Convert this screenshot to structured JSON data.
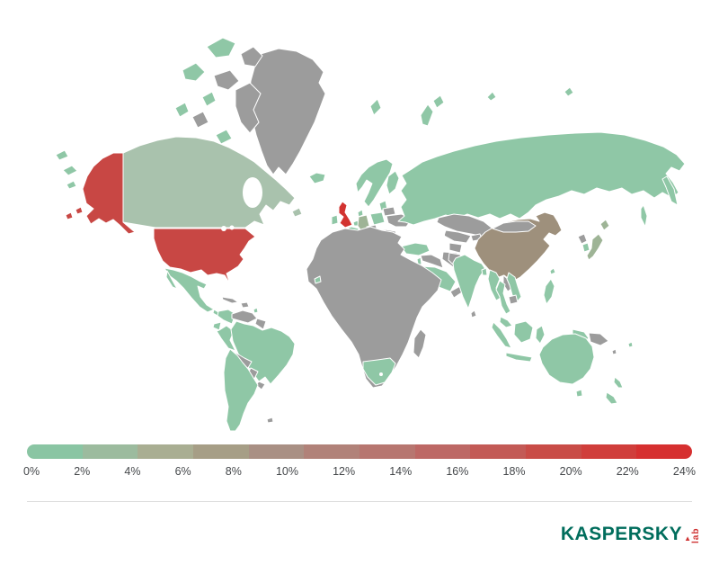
{
  "legend": {
    "tick_labels": [
      "0%",
      "2%",
      "4%",
      "6%",
      "8%",
      "10%",
      "12%",
      "14%",
      "16%",
      "18%",
      "20%",
      "22%",
      "24%"
    ],
    "segment_colors": [
      "#8ac5a3",
      "#9cbb9e",
      "#a9ae92",
      "#a69e86",
      "#a99084",
      "#b18279",
      "#b77670",
      "#bd6865",
      "#c35a56",
      "#c94c47",
      "#d03e3b",
      "#d63030"
    ]
  },
  "footer": {
    "logo_text": "KASPERSKY",
    "logo_sub": "lab"
  },
  "colors": {
    "green": "#8fc7a6",
    "canada_green": "#a9c2ad",
    "muted_green": "#9eb496",
    "gray": "#9c9c9c",
    "tan": "#9e907c",
    "red": "#c84744",
    "bright_red": "#d23330",
    "ocean": "#ffffff",
    "border": "#ffffff",
    "logo_green": "#006d5c",
    "logo_red": "#cf3333",
    "divider": "#dcdcdc",
    "label_text": "#44474a"
  },
  "chart_data": {
    "type": "heatmap",
    "subtype": "world-choropleth",
    "title": "",
    "unit": "percent",
    "legend_range": {
      "min": 0,
      "max": 24,
      "step": 2
    },
    "legend_position": "bottom",
    "no_data_color": "#9c9c9c",
    "values": [
      {
        "country": "United Kingdom",
        "value": 24
      },
      {
        "country": "United States",
        "value": 20
      },
      {
        "country": "China",
        "value": 7
      },
      {
        "country": "Germany",
        "value": 3
      },
      {
        "country": "Japan",
        "value": 3
      },
      {
        "country": "Canada",
        "value": 2
      },
      {
        "country": "Russia",
        "value": 1
      },
      {
        "country": "India",
        "value": 1
      },
      {
        "country": "Brazil",
        "value": 1
      },
      {
        "country": "Mexico",
        "value": 1
      },
      {
        "country": "Australia",
        "value": 1
      },
      {
        "country": "New Zealand",
        "value": 1
      },
      {
        "country": "France",
        "value": 1
      },
      {
        "country": "Ireland",
        "value": 1
      },
      {
        "country": "Iceland",
        "value": 1
      },
      {
        "country": "Norway",
        "value": 1
      },
      {
        "country": "Sweden",
        "value": 1
      },
      {
        "country": "Finland",
        "value": 1
      },
      {
        "country": "Poland",
        "value": 1
      },
      {
        "country": "Turkey",
        "value": 1
      },
      {
        "country": "Saudi Arabia",
        "value": 1
      },
      {
        "country": "South Africa",
        "value": 1
      },
      {
        "country": "Colombia",
        "value": 1
      },
      {
        "country": "Peru",
        "value": 1
      },
      {
        "country": "Argentina",
        "value": 1
      },
      {
        "country": "Chile",
        "value": 1
      },
      {
        "country": "South Korea",
        "value": 1
      },
      {
        "country": "Myanmar",
        "value": 1
      },
      {
        "country": "Thailand",
        "value": 1
      },
      {
        "country": "Vietnam",
        "value": 1
      },
      {
        "country": "Malaysia",
        "value": 1
      },
      {
        "country": "Indonesia",
        "value": 1
      },
      {
        "country": "Philippines",
        "value": 1
      }
    ]
  }
}
